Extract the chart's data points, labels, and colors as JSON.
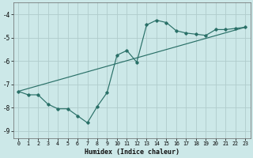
{
  "xlabel": "Humidex (Indice chaleur)",
  "bg_color": "#cce8e8",
  "grid_color": "#b0cccc",
  "line_color": "#2a7068",
  "xlim": [
    -0.5,
    23.5
  ],
  "ylim": [
    -9.3,
    -3.5
  ],
  "yticks": [
    -9,
    -8,
    -7,
    -6,
    -5,
    -4
  ],
  "xticks": [
    0,
    1,
    2,
    3,
    4,
    5,
    6,
    7,
    8,
    9,
    10,
    11,
    12,
    13,
    14,
    15,
    16,
    17,
    18,
    19,
    20,
    21,
    22,
    23
  ],
  "curve1_x": [
    0,
    1,
    2,
    3,
    4,
    5,
    6,
    7,
    8,
    9,
    10,
    11,
    12,
    13,
    14,
    15,
    16,
    17,
    18,
    19,
    20,
    21,
    22,
    23
  ],
  "curve1_y": [
    -7.3,
    -7.45,
    -7.45,
    -7.85,
    -8.05,
    -8.05,
    -8.35,
    -8.65,
    -7.95,
    -7.35,
    -5.75,
    -5.55,
    -6.05,
    -4.45,
    -4.25,
    -4.35,
    -4.7,
    -4.8,
    -4.85,
    -4.9,
    -4.65,
    -4.65,
    -4.6,
    -4.55
  ],
  "curve2_x": [
    0,
    23
  ],
  "curve2_y": [
    -7.3,
    -4.55
  ]
}
